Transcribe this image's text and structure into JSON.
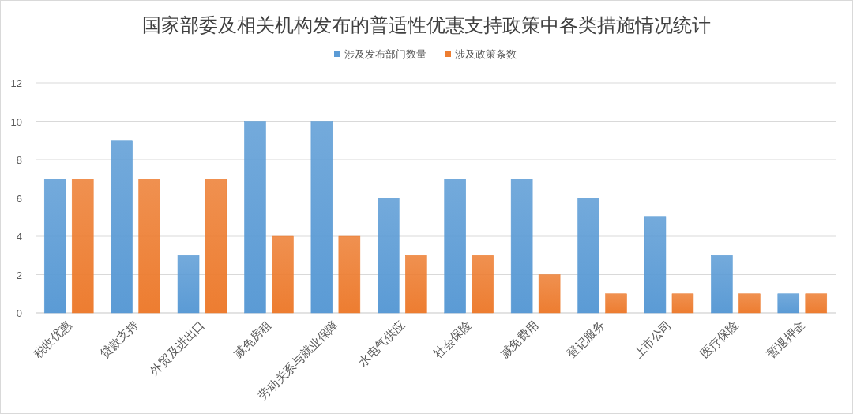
{
  "chart_data": {
    "type": "bar",
    "title": "国家部委及相关机构发布的普适性优惠支持政策中各类措施情况统计",
    "categories": [
      "税收优惠",
      "贷款支持",
      "外贸及进出口",
      "减免房租",
      "劳动关系与就业保障",
      "水电气供应",
      "社会保险",
      "减免费用",
      "登记服务",
      "上市公司",
      "医疗保险",
      "暂退押金"
    ],
    "series": [
      {
        "name": "涉及发布部门数量",
        "color": "#5b9bd5",
        "values": [
          7,
          9,
          3,
          10,
          10,
          6,
          7,
          7,
          6,
          5,
          3,
          1
        ]
      },
      {
        "name": "涉及政策条数",
        "color": "#ed7d31",
        "values": [
          7,
          7,
          7,
          4,
          4,
          3,
          3,
          2,
          1,
          1,
          1,
          1
        ]
      }
    ],
    "ylim": [
      0,
      12
    ],
    "yticks": [
      0,
      2,
      4,
      6,
      8,
      10,
      12
    ],
    "grid": "y",
    "legend": "top"
  }
}
